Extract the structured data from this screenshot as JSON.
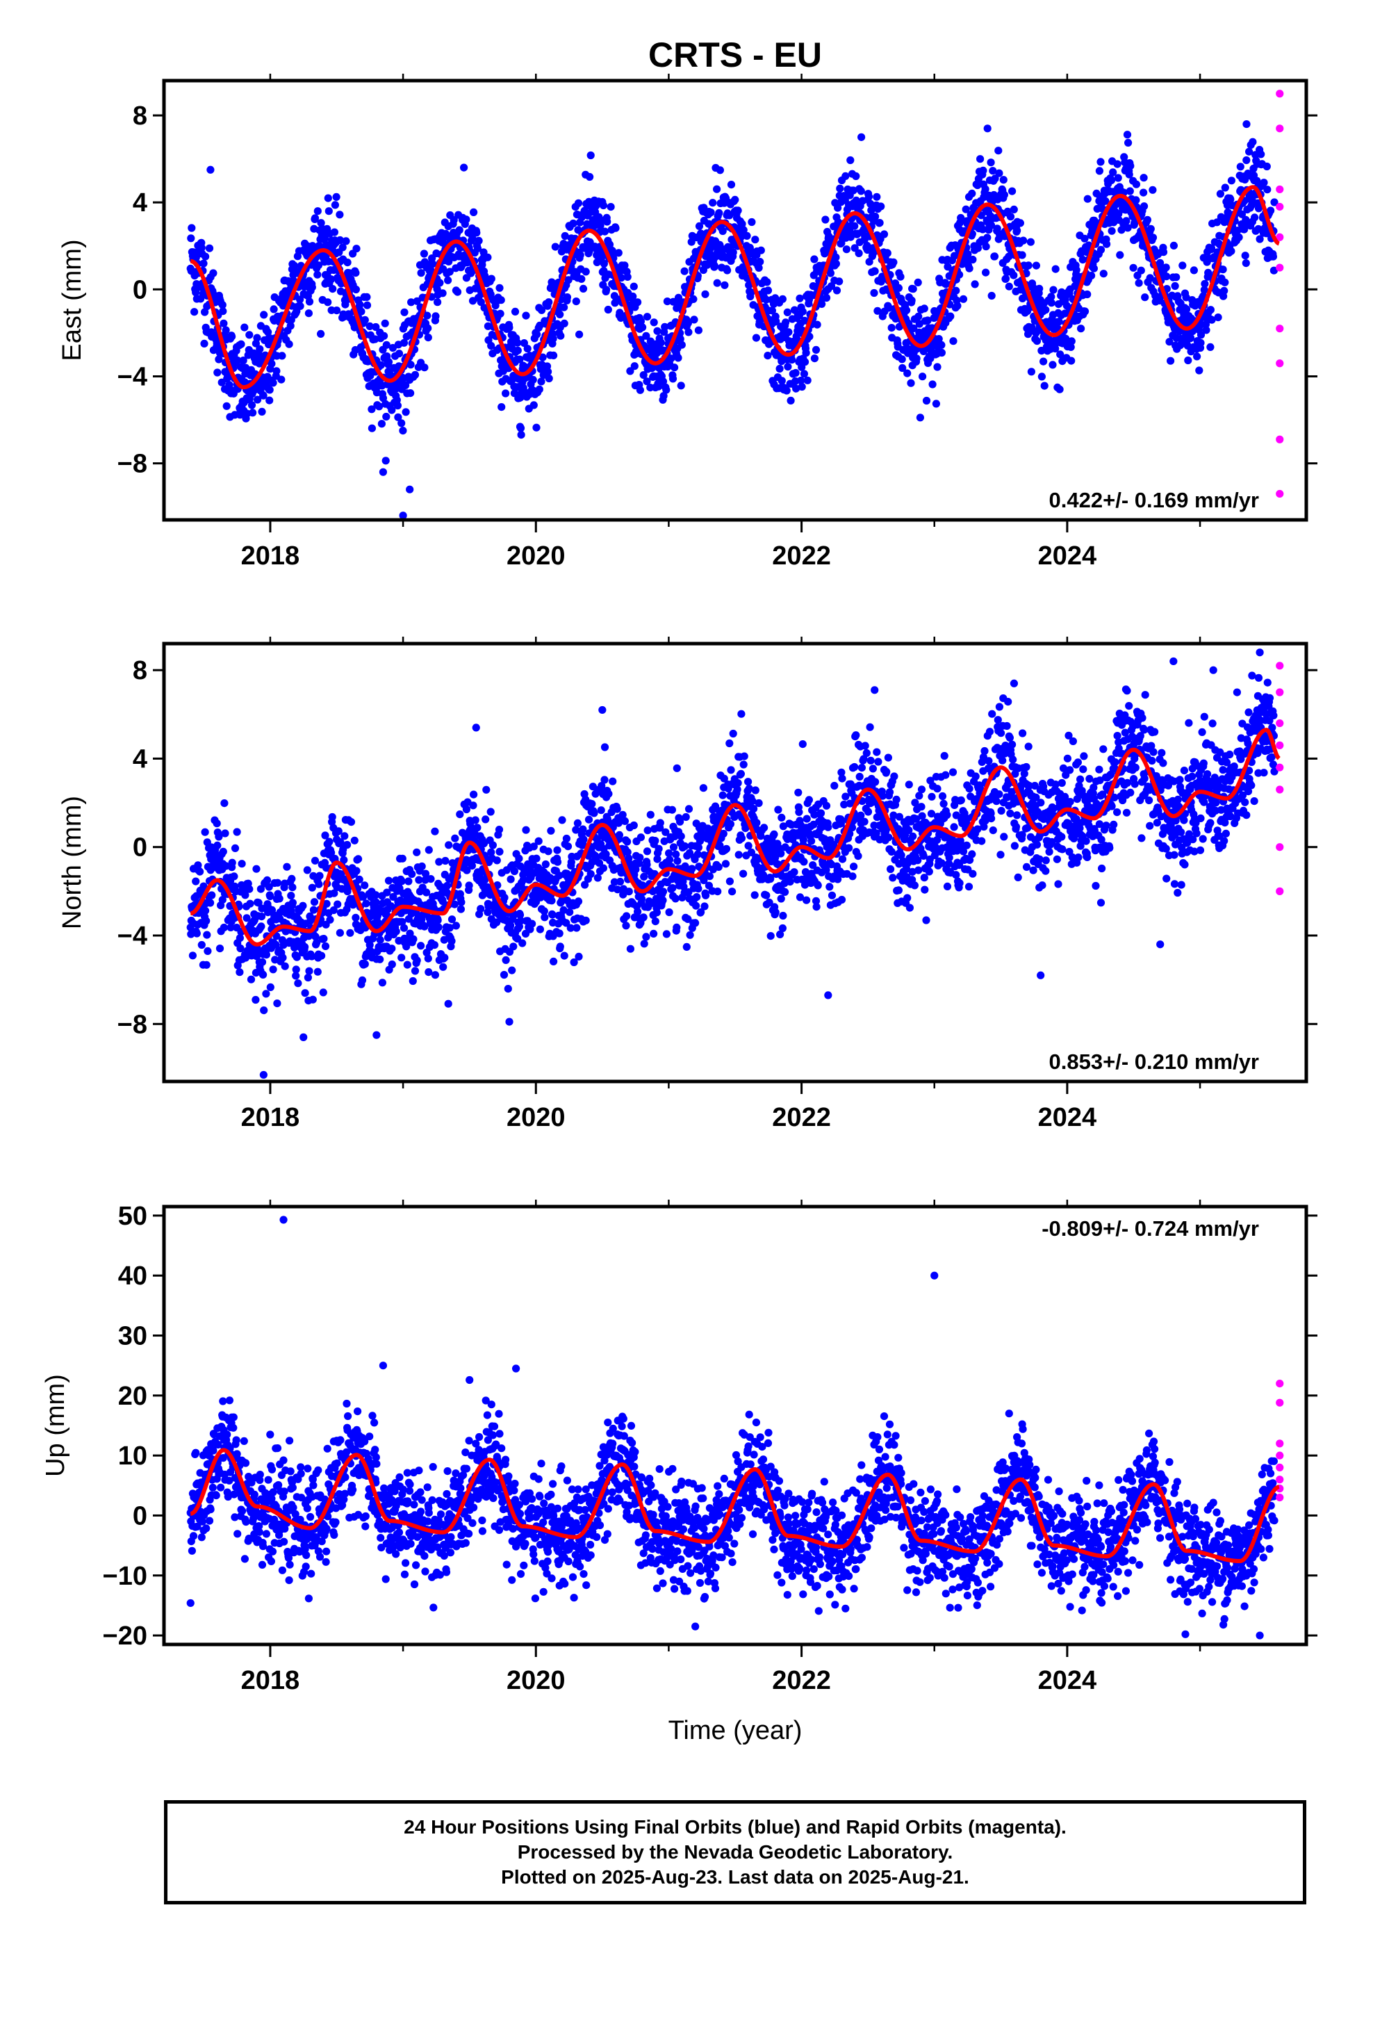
{
  "title": "CRTS - EU",
  "colors": {
    "final": "#0000ff",
    "rapid": "#ff00ff",
    "model": "#ff0000",
    "frame": "#000000"
  },
  "xaxis": {
    "label": "Time (year)",
    "range": [
      2017.2,
      2025.8
    ],
    "ticks": [
      "2018",
      "2020",
      "2022",
      "2024"
    ]
  },
  "caption": [
    "24 Hour Positions Using Final Orbits (blue) and Rapid Orbits (magenta).",
    "Processed by the Nevada Geodetic Laboratory.",
    "Plotted on 2025-Aug-23. Last data on 2025-Aug-21."
  ],
  "chart_data": [
    {
      "type": "scatter",
      "ylabel": "East (mm)",
      "ylim": [
        -10.6,
        9.6
      ],
      "yticks": [
        "8",
        "4",
        "0",
        "−4",
        "−8"
      ],
      "rate_text": "0.422+/- 0.169 mm/yr",
      "rate_position": "bottom-right",
      "model": {
        "rate": 0.422,
        "amplitude": 3.2,
        "peak_phase": 0.44
      },
      "model_points": [
        [
          2017.4,
          1.3
        ],
        [
          2017.8,
          -4.5
        ],
        [
          2018.4,
          1.8
        ],
        [
          2018.9,
          -4.2
        ],
        [
          2019.4,
          2.2
        ],
        [
          2019.9,
          -3.9
        ],
        [
          2020.4,
          2.7
        ],
        [
          2020.9,
          -3.4
        ],
        [
          2021.4,
          3.1
        ],
        [
          2021.9,
          -3.0
        ],
        [
          2022.4,
          3.5
        ],
        [
          2022.9,
          -2.6
        ],
        [
          2023.4,
          3.9
        ],
        [
          2023.9,
          -2.1
        ],
        [
          2024.4,
          4.3
        ],
        [
          2024.9,
          -1.8
        ],
        [
          2025.4,
          4.7
        ],
        [
          2025.6,
          2.1
        ]
      ],
      "outliers": [
        [
          2018.85,
          -8.4
        ],
        [
          2019.0,
          -10.4
        ],
        [
          2019.05,
          -9.2
        ],
        [
          2017.55,
          5.5
        ],
        [
          2022.45,
          7.0
        ],
        [
          2023.4,
          7.4
        ],
        [
          2025.35,
          7.6
        ]
      ],
      "rapid_points": [
        [
          2025.6,
          9.0
        ],
        [
          2025.6,
          7.4
        ],
        [
          2025.6,
          4.6
        ],
        [
          2025.6,
          3.8
        ],
        [
          2025.6,
          2.4
        ],
        [
          2025.6,
          1.0
        ],
        [
          2025.6,
          -1.8
        ],
        [
          2025.6,
          -3.4
        ],
        [
          2025.6,
          -6.9
        ],
        [
          2025.6,
          -9.4
        ]
      ],
      "scatter_sd": 1.1
    },
    {
      "type": "scatter",
      "ylabel": "North (mm)",
      "ylim": [
        -10.6,
        9.2
      ],
      "yticks": [
        "8",
        "4",
        "0",
        "−4",
        "−8"
      ],
      "rate_text": "0.853+/- 0.210 mm/yr",
      "rate_position": "bottom-right",
      "model_points": [
        [
          2017.4,
          -3.0
        ],
        [
          2017.6,
          -1.5
        ],
        [
          2017.9,
          -4.4
        ],
        [
          2018.1,
          -3.6
        ],
        [
          2018.3,
          -3.8
        ],
        [
          2018.5,
          -0.7
        ],
        [
          2018.8,
          -3.8
        ],
        [
          2019.0,
          -2.7
        ],
        [
          2019.3,
          -3.0
        ],
        [
          2019.5,
          0.2
        ],
        [
          2019.8,
          -2.9
        ],
        [
          2020.0,
          -1.7
        ],
        [
          2020.2,
          -2.2
        ],
        [
          2020.5,
          1.0
        ],
        [
          2020.8,
          -2.0
        ],
        [
          2021.0,
          -1.0
        ],
        [
          2021.2,
          -1.3
        ],
        [
          2021.5,
          1.9
        ],
        [
          2021.8,
          -1.1
        ],
        [
          2022.0,
          0.0
        ],
        [
          2022.2,
          -0.5
        ],
        [
          2022.5,
          2.6
        ],
        [
          2022.8,
          -0.1
        ],
        [
          2023.0,
          0.9
        ],
        [
          2023.2,
          0.5
        ],
        [
          2023.5,
          3.6
        ],
        [
          2023.8,
          0.7
        ],
        [
          2024.0,
          1.7
        ],
        [
          2024.2,
          1.3
        ],
        [
          2024.5,
          4.4
        ],
        [
          2024.8,
          1.4
        ],
        [
          2025.0,
          2.5
        ],
        [
          2025.2,
          2.2
        ],
        [
          2025.5,
          5.3
        ],
        [
          2025.6,
          4.0
        ]
      ],
      "outliers": [
        [
          2017.95,
          -10.3
        ],
        [
          2018.25,
          -8.6
        ],
        [
          2018.8,
          -8.5
        ],
        [
          2019.8,
          -7.9
        ],
        [
          2022.2,
          -6.7
        ],
        [
          2023.8,
          -5.8
        ],
        [
          2024.7,
          -4.4
        ],
        [
          2019.55,
          5.4
        ],
        [
          2020.5,
          6.2
        ],
        [
          2022.55,
          7.1
        ],
        [
          2023.6,
          7.4
        ],
        [
          2024.8,
          8.4
        ],
        [
          2025.1,
          8.0
        ],
        [
          2025.45,
          8.8
        ]
      ],
      "rapid_points": [
        [
          2025.6,
          8.2
        ],
        [
          2025.6,
          7.0
        ],
        [
          2025.6,
          5.6
        ],
        [
          2025.6,
          4.6
        ],
        [
          2025.6,
          3.6
        ],
        [
          2025.6,
          2.6
        ],
        [
          2025.6,
          0.0
        ],
        [
          2025.6,
          -2.0
        ]
      ],
      "scatter_sd": 1.3
    },
    {
      "type": "scatter",
      "ylabel": "Up (mm)",
      "ylim": [
        -21.5,
        51.5
      ],
      "yticks": [
        "50",
        "40",
        "30",
        "20",
        "10",
        "0",
        "−10",
        "−20"
      ],
      "rate_text": "-0.809+/- 0.724 mm/yr",
      "rate_position": "top-right",
      "model_points": [
        [
          2017.4,
          0.3
        ],
        [
          2017.65,
          10.9
        ],
        [
          2017.9,
          1.5
        ],
        [
          2018.3,
          -2.1
        ],
        [
          2018.65,
          10.1
        ],
        [
          2018.9,
          -0.9
        ],
        [
          2019.3,
          -2.8
        ],
        [
          2019.65,
          9.3
        ],
        [
          2019.9,
          -1.8
        ],
        [
          2020.3,
          -3.6
        ],
        [
          2020.65,
          8.5
        ],
        [
          2020.9,
          -2.6
        ],
        [
          2021.3,
          -4.4
        ],
        [
          2021.65,
          7.7
        ],
        [
          2021.9,
          -3.4
        ],
        [
          2022.3,
          -5.2
        ],
        [
          2022.65,
          6.8
        ],
        [
          2022.9,
          -4.2
        ],
        [
          2023.3,
          -6.0
        ],
        [
          2023.65,
          6.0
        ],
        [
          2023.9,
          -5.0
        ],
        [
          2024.3,
          -6.8
        ],
        [
          2024.65,
          5.2
        ],
        [
          2024.9,
          -5.9
        ],
        [
          2025.3,
          -7.6
        ],
        [
          2025.6,
          4.8
        ]
      ],
      "outliers": [
        [
          2018.1,
          49.3
        ],
        [
          2023.0,
          40.0
        ],
        [
          2019.85,
          24.5
        ],
        [
          2018.85,
          25.0
        ],
        [
          2017.4,
          -14.6
        ],
        [
          2021.2,
          -18.5
        ],
        [
          2025.45,
          -20.0
        ]
      ],
      "rapid_points": [
        [
          2025.6,
          22.0
        ],
        [
          2025.6,
          18.8
        ],
        [
          2025.6,
          12.0
        ],
        [
          2025.6,
          10.0
        ],
        [
          2025.6,
          8.0
        ],
        [
          2025.6,
          6.0
        ],
        [
          2025.6,
          4.5
        ],
        [
          2025.6,
          3.0
        ]
      ],
      "scatter_sd": 4.2
    }
  ]
}
